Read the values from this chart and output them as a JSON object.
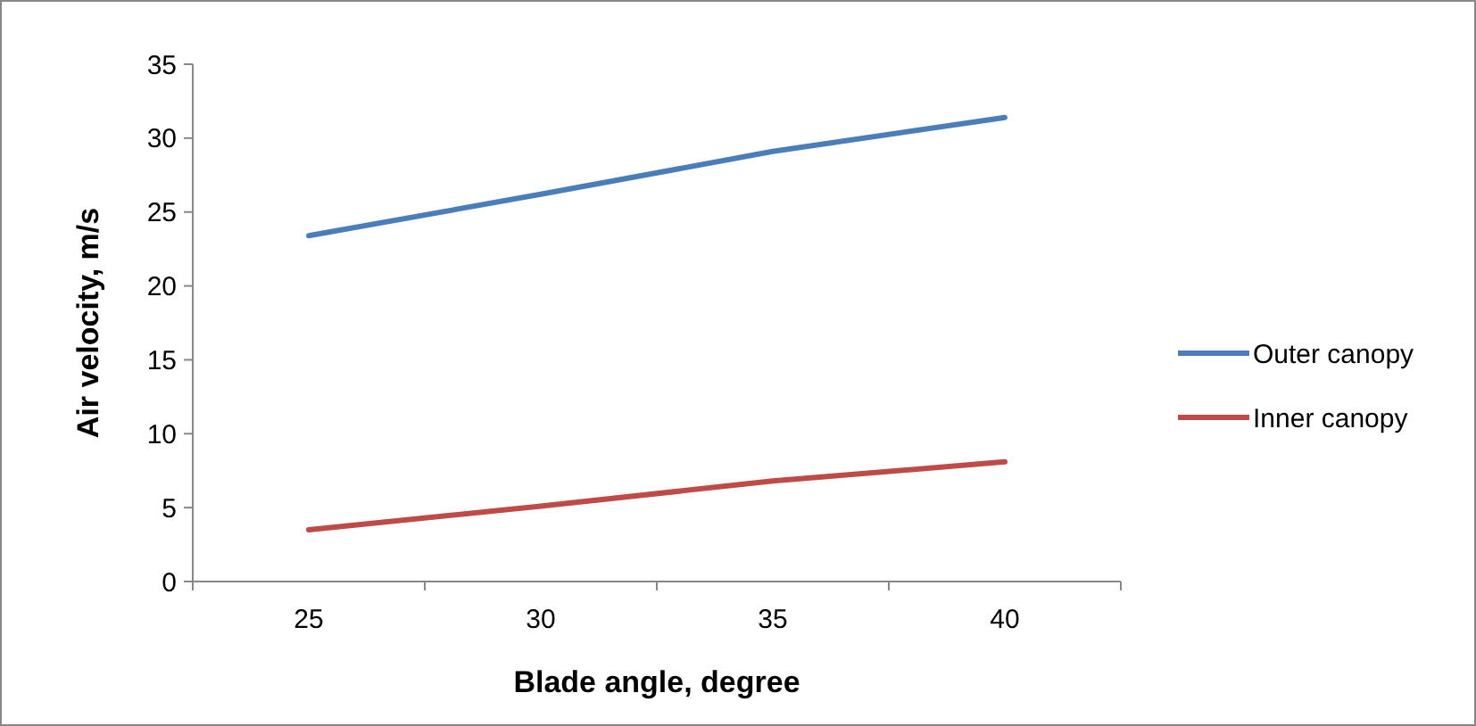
{
  "chart_data": {
    "type": "line",
    "xlabel": "Blade angle, degree",
    "ylabel": "Air velocity, m/s",
    "categories": [
      "25",
      "30",
      "35",
      "40"
    ],
    "series": [
      {
        "name": "Outer canopy",
        "color": "#4a7ebb",
        "values": [
          23.4,
          26.2,
          29.1,
          31.4
        ]
      },
      {
        "name": "Inner canopy",
        "color": "#be4b48",
        "values": [
          3.5,
          5.1,
          6.8,
          8.1
        ]
      }
    ],
    "ylim": [
      0,
      35
    ],
    "yticks": [
      0,
      5,
      10,
      15,
      20,
      25,
      30,
      35
    ],
    "grid": false,
    "legend": "right",
    "marker": "none",
    "line_style": "solid"
  }
}
